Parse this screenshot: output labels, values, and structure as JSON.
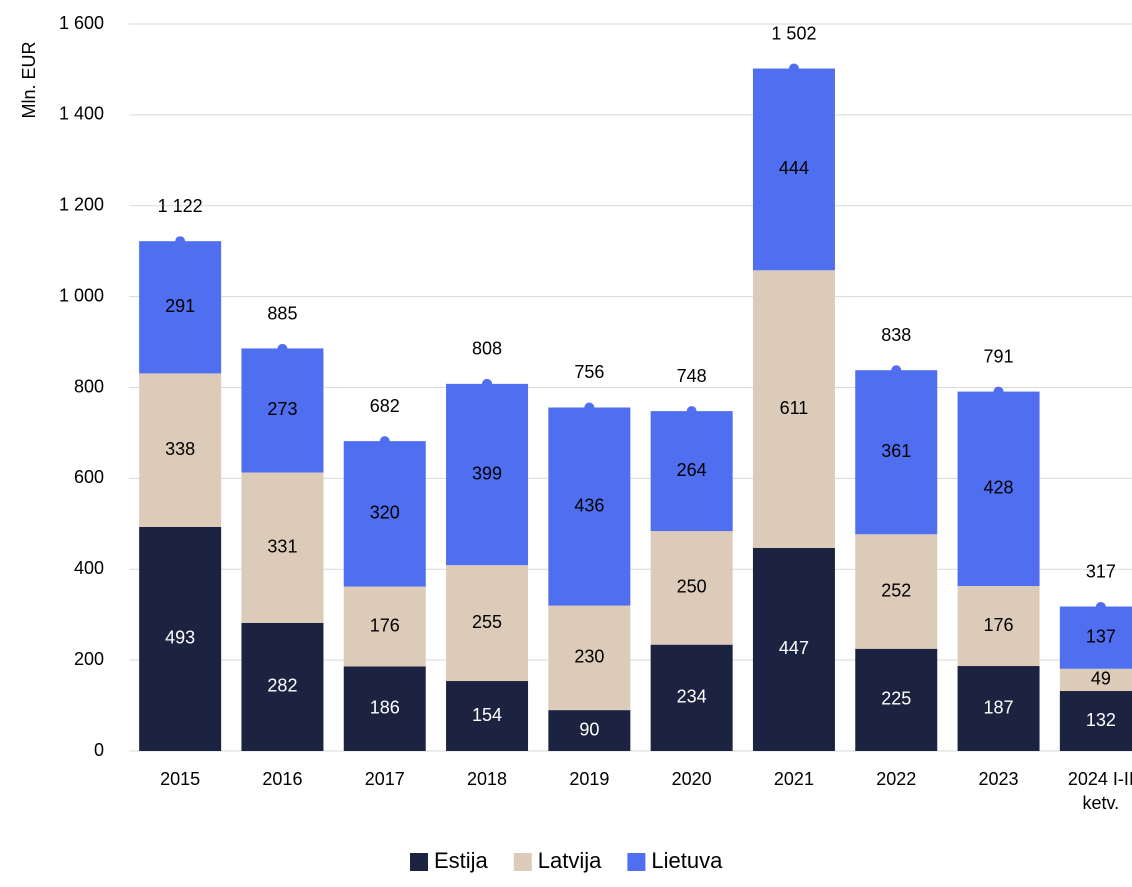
{
  "chart_data": {
    "type": "stacked_bar",
    "ylabel": "Mln. EUR",
    "categories": [
      "2015",
      "2016",
      "2017",
      "2018",
      "2019",
      "2020",
      "2021",
      "2022",
      "2023",
      "2024 I-II ketv."
    ],
    "series": [
      {
        "name": "Estija",
        "color": "#1b2340",
        "values": [
          493,
          282,
          186,
          154,
          90,
          234,
          447,
          225,
          187,
          132
        ]
      },
      {
        "name": "Latvija",
        "color": "#dccbb9",
        "values": [
          338,
          331,
          176,
          255,
          230,
          250,
          611,
          252,
          176,
          49
        ]
      },
      {
        "name": "Lietuva",
        "color": "#4f6ef0",
        "values": [
          291,
          273,
          320,
          399,
          436,
          264,
          444,
          361,
          428,
          137
        ]
      }
    ],
    "totals": {
      "color": "#4f6ef0",
      "values": [
        1122,
        885,
        682,
        808,
        756,
        748,
        1502,
        838,
        791,
        317
      ],
      "value_labels": [
        "1 122",
        "885",
        "682",
        "808",
        "756",
        "748",
        "1 502",
        "838",
        "791",
        "317"
      ]
    },
    "ylim": [
      0,
      1600
    ],
    "yticks": [
      0,
      200,
      400,
      600,
      800,
      {
        "value": 1000,
        "label": "1 000"
      },
      {
        "value": 1200,
        "label": "1 200"
      },
      {
        "value": 1400,
        "label": "1 400"
      },
      {
        "value": 1600,
        "label": "1 600"
      }
    ],
    "grid": true
  }
}
